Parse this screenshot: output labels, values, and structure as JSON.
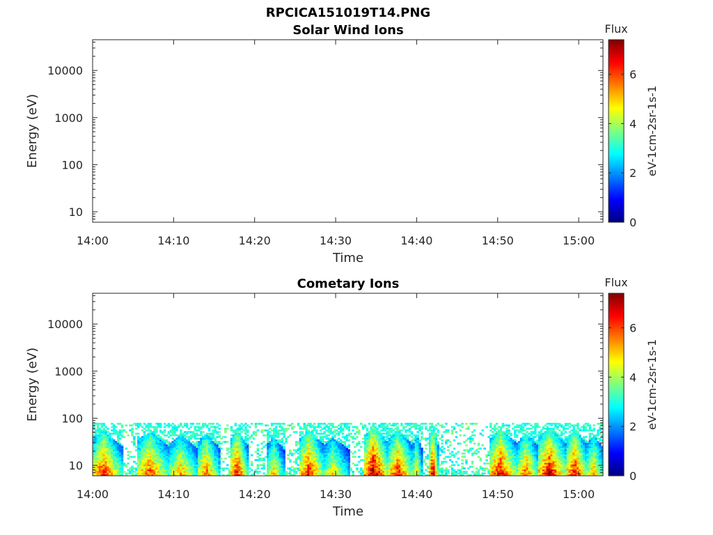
{
  "figure": {
    "title": "RPCICA151019T14.PNG"
  },
  "colors": {
    "colormap": [
      "#00007f",
      "#0000ff",
      "#007fff",
      "#00ffff",
      "#7fff7f",
      "#ffff00",
      "#ff7f00",
      "#ff0000",
      "#7f0000"
    ]
  },
  "chart_data": [
    {
      "type": "heatmap",
      "title": "Solar Wind Ions",
      "xlabel": "Time",
      "ylabel": "Energy (eV)",
      "x_ticks": [
        "14:00",
        "14:10",
        "14:20",
        "14:30",
        "14:40",
        "14:50",
        "15:00"
      ],
      "xlim_minutes": [
        0,
        63
      ],
      "y_scale": "log",
      "ylim": [
        6,
        45000
      ],
      "y_ticks": [
        10,
        100,
        1000,
        10000
      ],
      "y_tick_labels": [
        "10",
        "100",
        "1000",
        "10000"
      ],
      "colorbar": {
        "title": "Flux",
        "label": "eV-1cm-2sr-1s-1",
        "range": [
          0,
          7.4
        ],
        "ticks": [
          0,
          2,
          4,
          6
        ],
        "tick_labels": [
          "0",
          "2",
          "4",
          "6"
        ]
      },
      "bursts": []
    },
    {
      "type": "heatmap",
      "title": "Cometary Ions",
      "xlabel": "Time",
      "ylabel": "Energy (eV)",
      "x_ticks": [
        "14:00",
        "14:10",
        "14:20",
        "14:30",
        "14:40",
        "14:50",
        "15:00"
      ],
      "xlim_minutes": [
        0,
        63
      ],
      "y_scale": "log",
      "ylim": [
        6,
        45000
      ],
      "y_ticks": [
        10,
        100,
        1000,
        10000
      ],
      "y_tick_labels": [
        "10",
        "100",
        "1000",
        "10000"
      ],
      "colorbar": {
        "title": "Flux",
        "label": "eV-1cm-2sr-1s-1",
        "range": [
          0,
          7.4
        ],
        "ticks": [
          0,
          2,
          4,
          6
        ],
        "tick_labels": [
          "0",
          "2",
          "4",
          "6"
        ]
      },
      "energy_range_with_signal": [
        6,
        80
      ],
      "bursts": [
        {
          "t0": 0.0,
          "t1": 3.5,
          "peak": 6.5
        },
        {
          "t0": 5.5,
          "t1": 9.5,
          "peak": 6.2
        },
        {
          "t0": 9.5,
          "t1": 13.0,
          "peak": 5.5
        },
        {
          "t0": 13.0,
          "t1": 15.5,
          "peak": 6.0
        },
        {
          "t0": 17.0,
          "t1": 19.0,
          "peak": 6.8
        },
        {
          "t0": 21.5,
          "t1": 23.5,
          "peak": 5.2
        },
        {
          "t0": 25.5,
          "t1": 28.5,
          "peak": 6.7
        },
        {
          "t0": 28.5,
          "t1": 31.5,
          "peak": 5.0
        },
        {
          "t0": 33.5,
          "t1": 36.5,
          "peak": 7.4
        },
        {
          "t0": 36.5,
          "t1": 39.5,
          "peak": 6.5
        },
        {
          "t0": 39.5,
          "t1": 40.5,
          "peak": 5.5
        },
        {
          "t0": 41.5,
          "t1": 42.5,
          "peak": 7.2
        },
        {
          "t0": 49.0,
          "t1": 52.5,
          "peak": 6.8
        },
        {
          "t0": 52.5,
          "t1": 55.0,
          "peak": 6.0
        },
        {
          "t0": 55.0,
          "t1": 58.5,
          "peak": 7.0
        },
        {
          "t0": 58.5,
          "t1": 61.0,
          "peak": 6.8
        },
        {
          "t0": 61.0,
          "t1": 63.0,
          "peak": 5.5
        }
      ]
    }
  ]
}
